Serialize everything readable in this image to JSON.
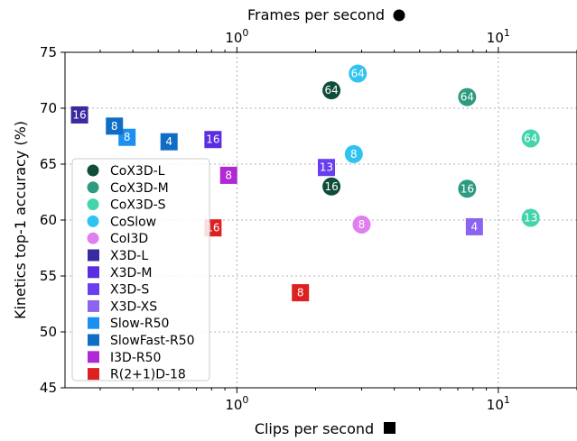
{
  "chart_data": {
    "type": "scatter",
    "xlabel_bottom": "Clips per second",
    "xlabel_top": "Frames per second",
    "ylabel": "Kinetics top-1 accuracy (%)",
    "xscale": "log",
    "xlim": [
      0.22,
      20
    ],
    "xlim_top": [
      0.22,
      20
    ],
    "ylim": [
      45,
      75
    ],
    "grid": true,
    "legend_placement": "center-left",
    "x_ticks": [
      {
        "value": 1,
        "base": "10",
        "exp": "0"
      },
      {
        "value": 10,
        "base": "10",
        "exp": "1"
      }
    ],
    "x_top_ticks": [
      {
        "value": 1,
        "base": "10",
        "exp": "0"
      },
      {
        "value": 10,
        "base": "10",
        "exp": "1"
      }
    ],
    "y_ticks": [
      "45",
      "50",
      "55",
      "60",
      "65",
      "70",
      "75"
    ],
    "series": [
      {
        "name": "CoX3D-L",
        "marker": "circle",
        "color": "#0f4d3a",
        "points": [
          {
            "x": 2.3,
            "y": 71.6,
            "label": "64"
          },
          {
            "x": 2.3,
            "y": 63.0,
            "label": "16"
          }
        ]
      },
      {
        "name": "CoX3D-M",
        "marker": "circle",
        "color": "#2e9a7f",
        "points": [
          {
            "x": 7.6,
            "y": 71.0,
            "label": "64"
          },
          {
            "x": 7.6,
            "y": 62.8,
            "label": "16"
          }
        ]
      },
      {
        "name": "CoX3D-S",
        "marker": "circle",
        "color": "#44d4ab",
        "points": [
          {
            "x": 13.3,
            "y": 67.3,
            "label": "64"
          },
          {
            "x": 13.3,
            "y": 60.2,
            "label": "13"
          }
        ]
      },
      {
        "name": "CoSlow",
        "marker": "circle",
        "color": "#31c3f0",
        "points": [
          {
            "x": 2.9,
            "y": 73.1,
            "label": "64"
          },
          {
            "x": 2.8,
            "y": 65.9,
            "label": "8"
          }
        ]
      },
      {
        "name": "CoI3D",
        "marker": "circle",
        "color": "#df7ff0",
        "points": [
          {
            "x": 3.0,
            "y": 59.6,
            "label": "8"
          }
        ]
      },
      {
        "name": "X3D-L",
        "marker": "square",
        "color": "#3a2aa0",
        "points": [
          {
            "x": 0.25,
            "y": 69.4,
            "label": "16"
          }
        ]
      },
      {
        "name": "X3D-M",
        "marker": "square",
        "color": "#5a2de0",
        "points": [
          {
            "x": 0.81,
            "y": 67.2,
            "label": "16"
          }
        ]
      },
      {
        "name": "X3D-S",
        "marker": "square",
        "color": "#6a3df0",
        "points": [
          {
            "x": 2.2,
            "y": 64.7,
            "label": "13"
          }
        ]
      },
      {
        "name": "X3D-XS",
        "marker": "square",
        "color": "#8b64ef",
        "points": [
          {
            "x": 8.1,
            "y": 59.4,
            "label": "4"
          }
        ]
      },
      {
        "name": "Slow-R50",
        "marker": "square",
        "color": "#1a90f0",
        "points": [
          {
            "x": 0.38,
            "y": 67.4,
            "label": "8"
          }
        ]
      },
      {
        "name": "SlowFast-R50",
        "marker": "square",
        "color": "#0f6ec4",
        "points": [
          {
            "x": 0.34,
            "y": 68.4,
            "label": "8"
          },
          {
            "x": 0.55,
            "y": 67.0,
            "label": "4"
          }
        ]
      },
      {
        "name": "I3D-R50",
        "marker": "square",
        "color": "#b02ad4",
        "points": [
          {
            "x": 0.93,
            "y": 64.0,
            "label": "8"
          }
        ]
      },
      {
        "name": "R(2+1)D-18",
        "marker": "square",
        "color": "#dd2020",
        "points": [
          {
            "x": 0.81,
            "y": 59.3,
            "label": "16"
          },
          {
            "x": 1.75,
            "y": 53.5,
            "label": "8"
          }
        ]
      }
    ]
  }
}
